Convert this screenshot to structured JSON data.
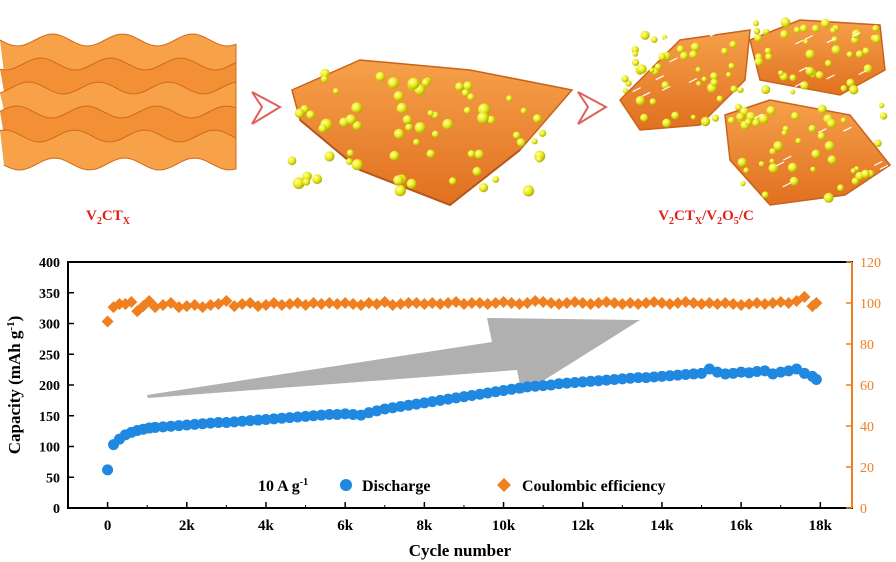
{
  "schematic": {
    "left_label": "V2CTX",
    "right_label": "V2CTX/V2O5/C",
    "colors": {
      "sheet": "#f28a2e",
      "sheet_dark": "#c9621a",
      "particle": "#e8e813",
      "arrow_outline": "#e0605a"
    }
  },
  "legend": {
    "condition": "10 A g-1",
    "discharge": "Discharge",
    "ce": "Coulombic efficiency"
  },
  "chart_data": {
    "type": "scatter",
    "xlabel": "Cycle number",
    "ylabel": "Capacity (mAh g-1)",
    "y2label": "",
    "xlim": [
      -1000,
      18800
    ],
    "ylim": [
      0,
      400
    ],
    "y2lim": [
      0,
      120
    ],
    "xticks": [
      "0",
      "2k",
      "4k",
      "6k",
      "8k",
      "10k",
      "12k",
      "14k",
      "16k",
      "18k"
    ],
    "yticks": [
      "0",
      "50",
      "100",
      "150",
      "200",
      "250",
      "300",
      "350",
      "400"
    ],
    "y2ticks": [
      "0",
      "20",
      "40",
      "60",
      "80",
      "100",
      "120"
    ],
    "colors": {
      "discharge": "#1f88e0",
      "ce": "#f07f1f",
      "trend_arrow": "#b0b0b0"
    },
    "series": [
      {
        "name": "Discharge",
        "axis": "left",
        "marker": "circle",
        "points": [
          [
            0,
            62
          ],
          [
            150,
            103
          ],
          [
            300,
            112
          ],
          [
            450,
            119
          ],
          [
            600,
            123
          ],
          [
            750,
            126
          ],
          [
            900,
            128
          ],
          [
            1050,
            130
          ],
          [
            1200,
            131
          ],
          [
            1400,
            132
          ],
          [
            1600,
            133
          ],
          [
            1800,
            134
          ],
          [
            2000,
            135
          ],
          [
            2200,
            136
          ],
          [
            2400,
            137
          ],
          [
            2600,
            138
          ],
          [
            2800,
            139
          ],
          [
            3000,
            139
          ],
          [
            3200,
            140
          ],
          [
            3400,
            141
          ],
          [
            3600,
            142
          ],
          [
            3800,
            143
          ],
          [
            4000,
            144
          ],
          [
            4200,
            145
          ],
          [
            4400,
            146
          ],
          [
            4600,
            147
          ],
          [
            4800,
            148
          ],
          [
            5000,
            149
          ],
          [
            5200,
            150
          ],
          [
            5400,
            151
          ],
          [
            5600,
            152
          ],
          [
            5800,
            152
          ],
          [
            6000,
            153
          ],
          [
            6200,
            152
          ],
          [
            6400,
            151
          ],
          [
            6600,
            155
          ],
          [
            6800,
            158
          ],
          [
            7000,
            161
          ],
          [
            7200,
            163
          ],
          [
            7400,
            165
          ],
          [
            7600,
            167
          ],
          [
            7800,
            169
          ],
          [
            8000,
            171
          ],
          [
            8200,
            173
          ],
          [
            8400,
            175
          ],
          [
            8600,
            177
          ],
          [
            8800,
            179
          ],
          [
            9000,
            181
          ],
          [
            9200,
            183
          ],
          [
            9400,
            185
          ],
          [
            9600,
            187
          ],
          [
            9800,
            189
          ],
          [
            10000,
            191
          ],
          [
            10200,
            193
          ],
          [
            10400,
            195
          ],
          [
            10600,
            197
          ],
          [
            10800,
            198
          ],
          [
            11000,
            199
          ],
          [
            11200,
            200
          ],
          [
            11400,
            202
          ],
          [
            11600,
            203
          ],
          [
            11800,
            204
          ],
          [
            12000,
            205
          ],
          [
            12200,
            206
          ],
          [
            12400,
            207
          ],
          [
            12600,
            208
          ],
          [
            12800,
            209
          ],
          [
            13000,
            210
          ],
          [
            13200,
            211
          ],
          [
            13400,
            212
          ],
          [
            13600,
            212
          ],
          [
            13800,
            213
          ],
          [
            14000,
            214
          ],
          [
            14200,
            215
          ],
          [
            14400,
            216
          ],
          [
            14600,
            217
          ],
          [
            14800,
            218
          ],
          [
            15000,
            219
          ],
          [
            15200,
            226
          ],
          [
            15400,
            221
          ],
          [
            15600,
            218
          ],
          [
            15800,
            219
          ],
          [
            16000,
            221
          ],
          [
            16200,
            220
          ],
          [
            16400,
            222
          ],
          [
            16600,
            223
          ],
          [
            16800,
            218
          ],
          [
            17000,
            221
          ],
          [
            17200,
            223
          ],
          [
            17400,
            226
          ],
          [
            17600,
            219
          ],
          [
            17800,
            214
          ],
          [
            17900,
            209
          ]
        ]
      },
      {
        "name": "Coulombic efficiency",
        "axis": "right",
        "marker": "diamond",
        "points": [
          [
            0,
            91
          ],
          [
            150,
            98
          ],
          [
            300,
            99.5
          ],
          [
            450,
            99.5
          ],
          [
            600,
            100.5
          ],
          [
            750,
            96
          ],
          [
            900,
            98.5
          ],
          [
            1050,
            101
          ],
          [
            1200,
            98
          ],
          [
            1400,
            99
          ],
          [
            1600,
            100
          ],
          [
            1800,
            98
          ],
          [
            2000,
            98.5
          ],
          [
            2200,
            99
          ],
          [
            2400,
            98
          ],
          [
            2600,
            99
          ],
          [
            2800,
            99.5
          ],
          [
            3000,
            101
          ],
          [
            3200,
            98.5
          ],
          [
            3400,
            99.5
          ],
          [
            3600,
            100
          ],
          [
            3800,
            98.5
          ],
          [
            4000,
            99
          ],
          [
            4200,
            100
          ],
          [
            4400,
            99
          ],
          [
            4600,
            99.5
          ],
          [
            4800,
            100
          ],
          [
            5000,
            99
          ],
          [
            5200,
            100
          ],
          [
            5400,
            99.5
          ],
          [
            5600,
            100
          ],
          [
            5800,
            99.5
          ],
          [
            6000,
            100
          ],
          [
            6200,
            99.5
          ],
          [
            6400,
            99
          ],
          [
            6600,
            100
          ],
          [
            6800,
            99.5
          ],
          [
            7000,
            100.5
          ],
          [
            7200,
            99
          ],
          [
            7400,
            99.5
          ],
          [
            7600,
            100
          ],
          [
            7800,
            100
          ],
          [
            8000,
            99.5
          ],
          [
            8200,
            100
          ],
          [
            8400,
            99.5
          ],
          [
            8600,
            100
          ],
          [
            8800,
            100.5
          ],
          [
            9000,
            99.5
          ],
          [
            9200,
            100
          ],
          [
            9400,
            100
          ],
          [
            9600,
            99.5
          ],
          [
            9800,
            100
          ],
          [
            10000,
            100.5
          ],
          [
            10200,
            100
          ],
          [
            10400,
            99.5
          ],
          [
            10600,
            100
          ],
          [
            10800,
            101
          ],
          [
            11000,
            100.5
          ],
          [
            11200,
            100
          ],
          [
            11400,
            99.5
          ],
          [
            11600,
            100
          ],
          [
            11800,
            100.5
          ],
          [
            12000,
            100
          ],
          [
            12200,
            99.5
          ],
          [
            12400,
            100
          ],
          [
            12600,
            100.5
          ],
          [
            12800,
            100
          ],
          [
            13000,
            99.5
          ],
          [
            13200,
            100
          ],
          [
            13400,
            99.5
          ],
          [
            13600,
            100
          ],
          [
            13800,
            100.5
          ],
          [
            14000,
            100
          ],
          [
            14200,
            99.5
          ],
          [
            14400,
            100
          ],
          [
            14600,
            100.5
          ],
          [
            14800,
            100
          ],
          [
            15000,
            99.5
          ],
          [
            15200,
            100
          ],
          [
            15400,
            99.5
          ],
          [
            15600,
            100
          ],
          [
            15800,
            99.5
          ],
          [
            16000,
            99
          ],
          [
            16200,
            99.5
          ],
          [
            16400,
            100
          ],
          [
            16600,
            99.5
          ],
          [
            16800,
            100
          ],
          [
            17000,
            100.5
          ],
          [
            17200,
            100
          ],
          [
            17400,
            101
          ],
          [
            17600,
            103
          ],
          [
            17800,
            98.5
          ],
          [
            17900,
            100
          ]
        ]
      }
    ]
  }
}
